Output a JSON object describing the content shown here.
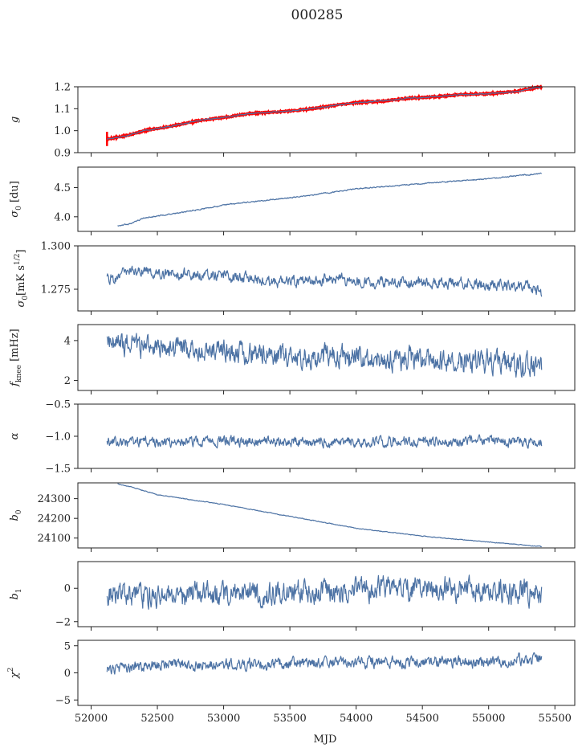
{
  "figure": {
    "title": "000285",
    "xlabel": "MJD",
    "xlim": [
      51900,
      55650
    ],
    "xticks": [
      52000,
      52500,
      53000,
      53500,
      54000,
      54500,
      55000,
      55500
    ],
    "line_color": "#4c72a4",
    "fit_color": "#ff0000"
  },
  "chart_data": [
    {
      "type": "line",
      "id": "g",
      "ylabel": "g",
      "ylim": [
        0.9,
        1.2
      ],
      "yticks": [
        0.9,
        1.0,
        1.1,
        1.2
      ],
      "ytick_labels": [
        "0.9",
        "1.0",
        "1.1",
        "1.2"
      ],
      "x_range": [
        52120,
        55400
      ],
      "trend": [
        [
          52120,
          0.962
        ],
        [
          52250,
          0.975
        ],
        [
          52400,
          1.0
        ],
        [
          52600,
          1.02
        ],
        [
          52800,
          1.045
        ],
        [
          53000,
          1.06
        ],
        [
          53200,
          1.078
        ],
        [
          53400,
          1.085
        ],
        [
          53600,
          1.095
        ],
        [
          53800,
          1.112
        ],
        [
          54000,
          1.128
        ],
        [
          54200,
          1.135
        ],
        [
          54400,
          1.148
        ],
        [
          54600,
          1.155
        ],
        [
          54800,
          1.165
        ],
        [
          55000,
          1.168
        ],
        [
          55200,
          1.178
        ],
        [
          55400,
          1.2
        ]
      ],
      "noise": 0.002,
      "overlay": {
        "color": "#ff0000",
        "errorbar_at": [
          52120,
          0.93,
          0.995
        ]
      }
    },
    {
      "type": "line",
      "id": "sigma0-du",
      "ylabel": "σ0 [du]",
      "ylim": [
        3.75,
        4.85
      ],
      "yticks": [
        4.0,
        4.5
      ],
      "ytick_labels": [
        "4.0",
        "4.5"
      ],
      "x_range": [
        52200,
        55400
      ],
      "trend": [
        [
          52200,
          3.85
        ],
        [
          52300,
          3.88
        ],
        [
          52400,
          3.98
        ],
        [
          52700,
          4.08
        ],
        [
          53000,
          4.2
        ],
        [
          53300,
          4.28
        ],
        [
          53600,
          4.35
        ],
        [
          54000,
          4.48
        ],
        [
          54400,
          4.55
        ],
        [
          54800,
          4.62
        ],
        [
          55000,
          4.65
        ],
        [
          55200,
          4.7
        ],
        [
          55400,
          4.74
        ]
      ],
      "noise": 0.008
    },
    {
      "type": "line",
      "id": "sigma0-mks",
      "ylabel": "σ0[mK s^1/2]",
      "ylim": [
        1.2625,
        1.3
      ],
      "yticks": [
        1.275,
        1.3
      ],
      "ytick_labels": [
        "1.275",
        "1.300"
      ],
      "x_range": [
        52120,
        55400
      ],
      "trend": [
        [
          52120,
          1.28
        ],
        [
          52300,
          1.286
        ],
        [
          52600,
          1.284
        ],
        [
          53000,
          1.283
        ],
        [
          53400,
          1.279
        ],
        [
          53800,
          1.281
        ],
        [
          54200,
          1.279
        ],
        [
          54600,
          1.279
        ],
        [
          55000,
          1.278
        ],
        [
          55300,
          1.277
        ],
        [
          55400,
          1.273
        ]
      ],
      "noise": 0.0025
    },
    {
      "type": "line",
      "id": "fknee",
      "ylabel": "fknee [mHz]",
      "ylim": [
        1.5,
        4.8
      ],
      "yticks": [
        2,
        4
      ],
      "ytick_labels": [
        "2",
        "4"
      ],
      "x_range": [
        52120,
        55400
      ],
      "trend": [
        [
          52120,
          3.9
        ],
        [
          52400,
          3.7
        ],
        [
          52800,
          3.5
        ],
        [
          53200,
          3.3
        ],
        [
          53600,
          3.2
        ],
        [
          54000,
          3.1
        ],
        [
          54500,
          3.05
        ],
        [
          55000,
          3.0
        ],
        [
          55400,
          2.6
        ]
      ],
      "noise": 0.45
    },
    {
      "type": "line",
      "id": "alpha",
      "ylabel": "α",
      "ylim": [
        -1.5,
        -0.5
      ],
      "yticks": [
        -1.5,
        -1.0,
        -0.5
      ],
      "ytick_labels": [
        "−1.5",
        "−1.0",
        "−0.5"
      ],
      "x_range": [
        52120,
        55400
      ],
      "trend": [
        [
          52120,
          -1.1
        ],
        [
          53000,
          -1.08
        ],
        [
          54000,
          -1.09
        ],
        [
          55000,
          -1.07
        ],
        [
          55400,
          -1.1
        ]
      ],
      "noise": 0.06
    },
    {
      "type": "line",
      "id": "b0",
      "ylabel": "b0",
      "ylim": [
        24050,
        24380
      ],
      "yticks": [
        24100,
        24200,
        24300
      ],
      "ytick_labels": [
        "24100",
        "24200",
        "24300"
      ],
      "x_range": [
        52200,
        55400
      ],
      "trend": [
        [
          52200,
          24375
        ],
        [
          52300,
          24360
        ],
        [
          52500,
          24320
        ],
        [
          53000,
          24270
        ],
        [
          53500,
          24210
        ],
        [
          54000,
          24150
        ],
        [
          54500,
          24110
        ],
        [
          55000,
          24080
        ],
        [
          55400,
          24057
        ]
      ],
      "noise": 1.5
    },
    {
      "type": "line",
      "id": "b1",
      "ylabel": "b1",
      "ylim": [
        -2.3,
        1.6
      ],
      "yticks": [
        -2,
        0
      ],
      "ytick_labels": [
        "−2",
        "0"
      ],
      "x_range": [
        52120,
        55400
      ],
      "trend": [
        [
          52120,
          -0.4
        ],
        [
          52600,
          -0.5
        ],
        [
          53200,
          -0.3
        ],
        [
          53800,
          -0.2
        ],
        [
          54400,
          0.0
        ],
        [
          55000,
          -0.1
        ],
        [
          55400,
          -0.3
        ]
      ],
      "noise": 0.55
    },
    {
      "type": "line",
      "id": "chi2",
      "ylabel": "χ2",
      "ylim": [
        -6,
        6
      ],
      "yticks": [
        -5,
        0,
        5
      ],
      "ytick_labels": [
        "−5",
        "0",
        "5"
      ],
      "x_range": [
        52120,
        55400
      ],
      "trend": [
        [
          52120,
          0.5
        ],
        [
          52500,
          1.5
        ],
        [
          53000,
          1.6
        ],
        [
          53500,
          1.8
        ],
        [
          54000,
          1.9
        ],
        [
          54500,
          2.0
        ],
        [
          55000,
          2.0
        ],
        [
          55400,
          2.8
        ]
      ],
      "noise": 0.8
    }
  ]
}
